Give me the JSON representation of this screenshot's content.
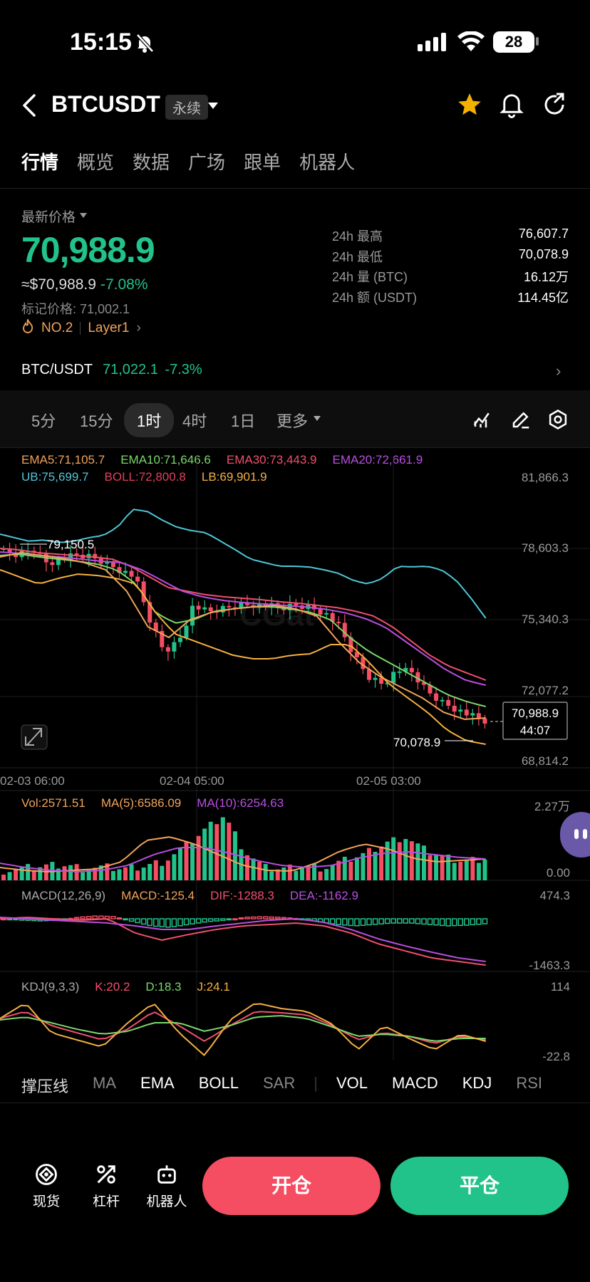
{
  "status_bar": {
    "time": "15:15",
    "battery": "28"
  },
  "header": {
    "symbol": "BTCUSDT",
    "contract_tag": "永续"
  },
  "tabs": [
    "行情",
    "概览",
    "数据",
    "广场",
    "跟单",
    "机器人"
  ],
  "price": {
    "label": "最新价格",
    "last": "70,988.9",
    "approx": "≈$70,988.9",
    "change_pct": "-7.08%",
    "mark_price": "标记价格: 71,002.1",
    "rank": "NO.2",
    "sector": "Layer1"
  },
  "stats": [
    {
      "k": "24h  最高",
      "v": "76,607.7"
    },
    {
      "k": "24h  最低",
      "v": "70,078.9"
    },
    {
      "k": "24h  量 (BTC)",
      "v": "16.12万"
    },
    {
      "k": "24h  额 (USDT)",
      "v": "114.45亿"
    }
  ],
  "spot_pair": {
    "name": "BTC/USDT",
    "price": "71,022.1",
    "change": "-7.3%"
  },
  "intervals": [
    "5分",
    "15分",
    "1时",
    "4时",
    "1日",
    "更多"
  ],
  "active_interval": "1时",
  "main_chart": {
    "ema5": "EMA5:71,105.7",
    "ema10": "EMA10:71,646.6",
    "ema30": "EMA30:73,443.9",
    "ema20": "EMA20:72,661.9",
    "ub": "UB:75,699.7",
    "boll": "BOLL:72,800.8",
    "lb": "LB:69,901.9",
    "y_ticks": [
      "81,866.3",
      "78,603.3",
      "75,340.3",
      "72,077.2",
      "68,814.2"
    ],
    "x_ticks": [
      "02-03 06:00",
      "02-04 05:00",
      "02-05 03:00"
    ],
    "high_label": "79,150.5",
    "low_label": "70,078.9",
    "current_price": "70,988.9",
    "countdown": "44:07",
    "watermark": "CGat"
  },
  "volume": {
    "vol": "Vol:2571.51",
    "ma5": "MA(5):6586.09",
    "ma10": "MA(10):6254.63",
    "top": "2.27万",
    "bottom": "0.00"
  },
  "macd": {
    "title": "MACD(12,26,9)",
    "macd": "MACD:-125.4",
    "dif": "DIF:-1288.3",
    "dea": "DEA:-1162.9",
    "top": "474.3",
    "bottom": "-1463.3"
  },
  "kdj": {
    "title": "KDJ(9,3,3)",
    "k": "K:20.2",
    "d": "D:18.3",
    "j": "J:24.1",
    "top": "114",
    "bottom": "-22.8"
  },
  "indicator_tabs": [
    "撑压线",
    "MA",
    "EMA",
    "BOLL",
    "SAR",
    "VOL",
    "MACD",
    "KDJ",
    "RSI"
  ],
  "bottom_nav": [
    {
      "label": "现货",
      "icon": "spot-icon"
    },
    {
      "label": "杠杆",
      "icon": "leverage-icon"
    },
    {
      "label": "机器人",
      "icon": "robot-icon"
    }
  ],
  "actions": {
    "open": "开仓",
    "close": "平仓"
  },
  "colors": {
    "green": "#22c38b",
    "red": "#f54e63",
    "ema5": "#f0a35a",
    "ema10": "#7bd86b",
    "ema30": "#f0506e",
    "ema20": "#b84fe0",
    "ub": "#4fc6d6",
    "boll": "#e0405a",
    "lb": "#f5b040"
  }
}
